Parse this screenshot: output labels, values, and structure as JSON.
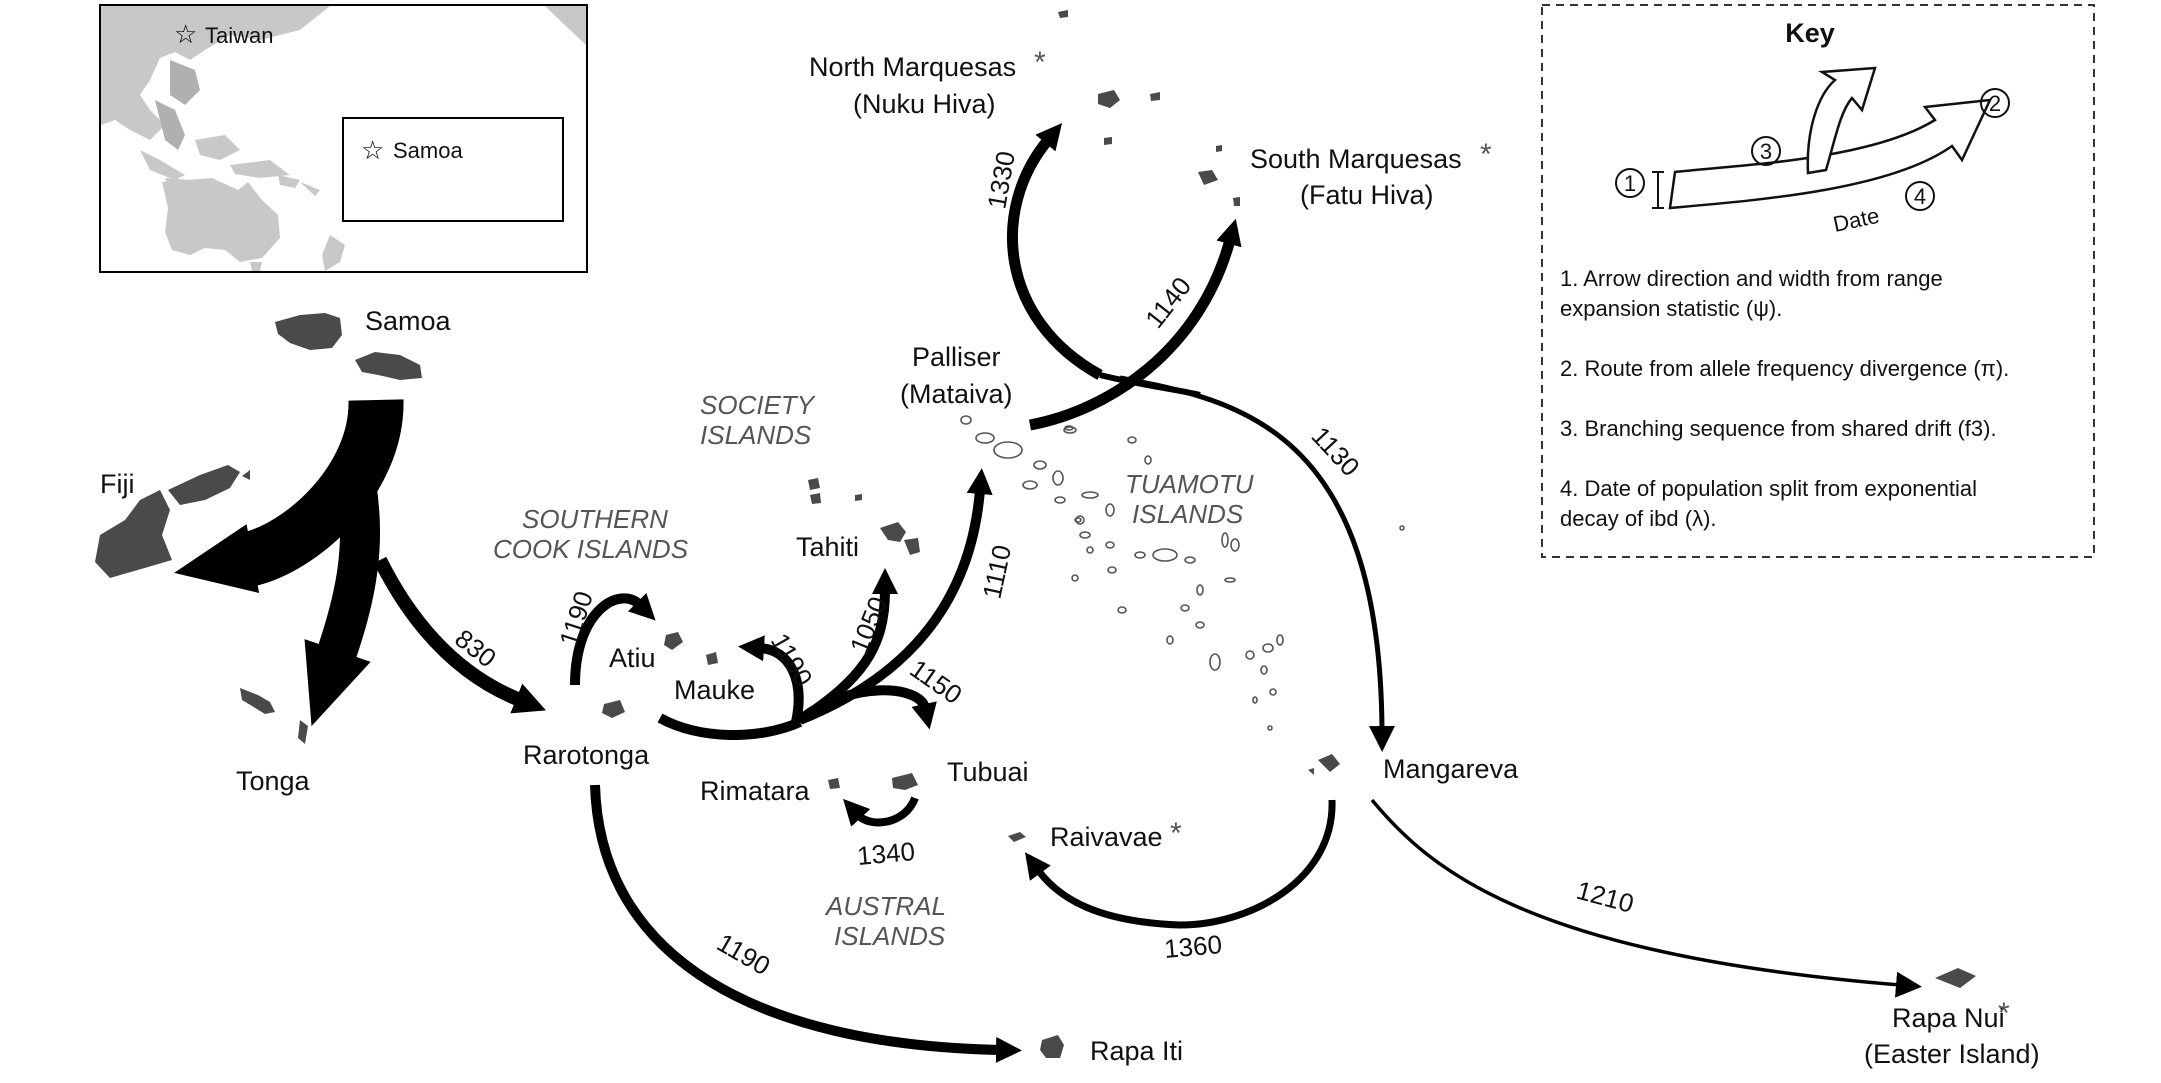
{
  "inset": {
    "labels": {
      "taiwan": "Taiwan",
      "samoa": "Samoa"
    },
    "land_color": "#c8c8c8",
    "sea_color": "#ffffff"
  },
  "islands": {
    "samoa": "Samoa",
    "fiji": "Fiji",
    "tonga": "Tonga",
    "rarotonga": "Rarotonga",
    "atiu": "Atiu",
    "mauke": "Mauke",
    "tahiti": "Tahiti",
    "palliser_1": "Palliser",
    "palliser_2": "(Mataiva)",
    "north_marq_1": "North Marquesas",
    "north_marq_2": "(Nuku Hiva)",
    "south_marq_1": "South Marquesas",
    "south_marq_2": "(Fatu Hiva)",
    "rimatara": "Rimatara",
    "tubuai": "Tubuai",
    "raivavae": "Raivavae",
    "mangareva": "Mangareva",
    "rapa_iti": "Rapa Iti",
    "rapa_nui_1": "Rapa Nui",
    "rapa_nui_2": "(Easter Island)",
    "asterisk": "*"
  },
  "groups": {
    "society_1": "SOCIETY",
    "society_2": "ISLANDS",
    "southern_cook_1": "SOUTHERN",
    "southern_cook_2": "COOK ISLANDS",
    "tuamotu_1": "TUAMOTU",
    "tuamotu_2": "ISLANDS",
    "austral_1": "AUSTRAL",
    "austral_2": "ISLANDS"
  },
  "routes": [
    {
      "from": "Samoa",
      "to": "Rarotonga",
      "date": "830"
    },
    {
      "from": "Rarotonga",
      "to": "Atiu",
      "date": "1190"
    },
    {
      "from": "Rarotonga",
      "to": "Mauke",
      "date": "1190"
    },
    {
      "from": "Rarotonga",
      "to": "Tahiti",
      "date": "1050"
    },
    {
      "from": "Rarotonga",
      "to": "Palliser",
      "date": "1110"
    },
    {
      "from": "Rarotonga",
      "to": "Tubuai",
      "date": "1150"
    },
    {
      "from": "Tubuai",
      "to": "Rimatara",
      "date": "1340"
    },
    {
      "from": "Rarotonga",
      "to": "Rapa Iti",
      "date": "1190"
    },
    {
      "from": "Palliser",
      "to": "South Marquesas",
      "date": "1140"
    },
    {
      "from": "Palliser",
      "to": "North Marquesas",
      "date": "1330"
    },
    {
      "from": "North Marquesas",
      "to": "Mangareva",
      "date": "1130"
    },
    {
      "from": "Mangareva",
      "to": "Raivavae",
      "date": "1360"
    },
    {
      "from": "Mangareva",
      "to": "Rapa Nui",
      "date": "1210"
    }
  ],
  "key": {
    "title": "Key",
    "badge_1": "1",
    "badge_2": "2",
    "badge_3": "3",
    "badge_4": "4",
    "date_word": "Date",
    "items": [
      {
        "line1": "1. Arrow direction and width from range",
        "line2": "expansion statistic (ψ)."
      },
      {
        "line1": "2. Route from allele frequency divergence (π).",
        "line2": ""
      },
      {
        "line1": "3. Branching sequence from shared drift (f3).",
        "line2": ""
      },
      {
        "line1": "4. Date of population split from exponential",
        "line2": "decay of ibd (λ)."
      }
    ]
  }
}
